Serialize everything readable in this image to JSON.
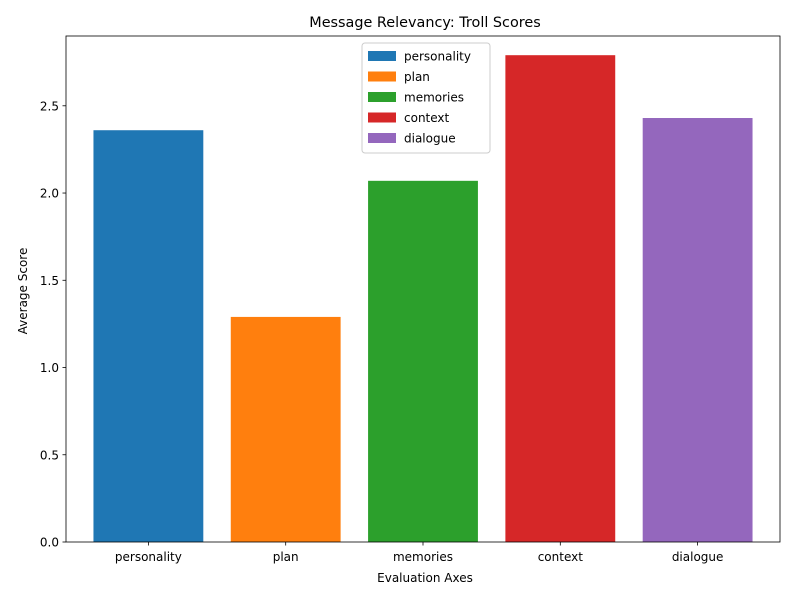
{
  "chart_data": {
    "type": "bar",
    "title": "Message Relevancy: Troll Scores",
    "xlabel": "Evaluation Axes",
    "ylabel": "Average Score",
    "categories": [
      "personality",
      "plan",
      "memories",
      "context",
      "dialogue"
    ],
    "values": [
      2.36,
      1.29,
      2.07,
      2.79,
      2.43
    ],
    "colors": [
      "#1f77b4",
      "#ff7f0e",
      "#2ca02c",
      "#d62728",
      "#9467bd"
    ],
    "ylim": [
      0,
      2.9
    ],
    "yticks": [
      0.0,
      0.5,
      1.0,
      1.5,
      2.0,
      2.5
    ],
    "yticklabels": [
      "0.0",
      "0.5",
      "1.0",
      "1.5",
      "2.0",
      "2.5"
    ],
    "grid": false,
    "legend": {
      "position": "top-center",
      "entries": [
        "personality",
        "plan",
        "memories",
        "context",
        "dialogue"
      ]
    }
  }
}
